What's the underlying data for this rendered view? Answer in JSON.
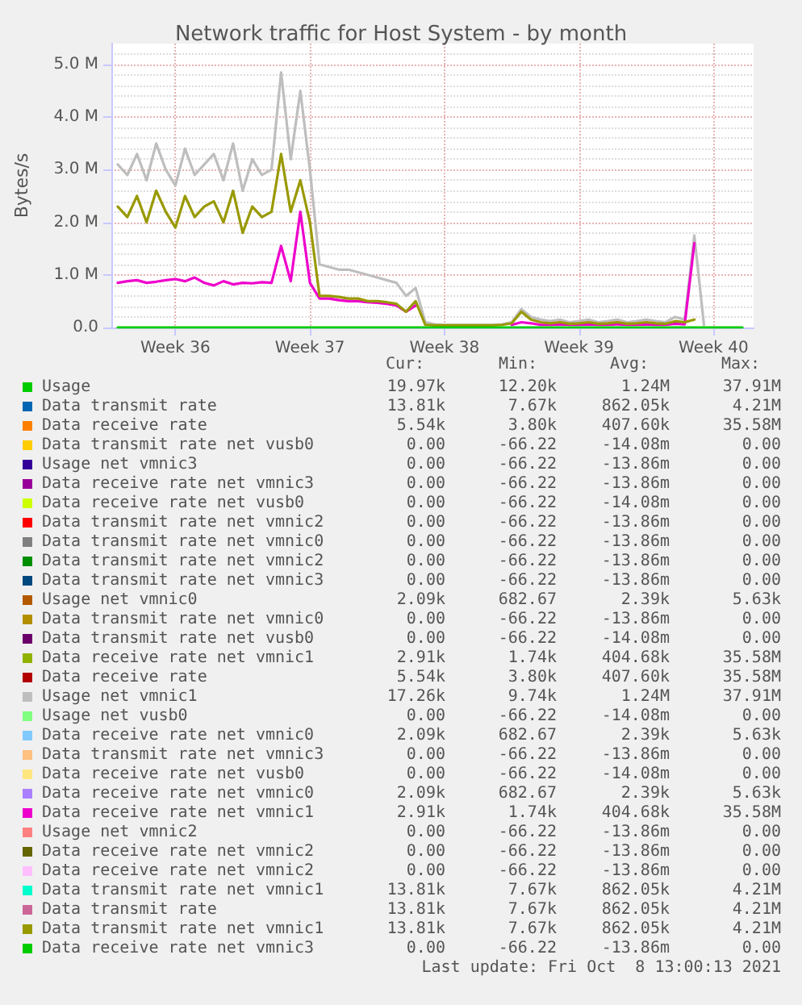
{
  "chart_data": {
    "type": "line",
    "title": "Network traffic for Host System - by month",
    "ylabel": "Bytes/s",
    "x": [
      "2021-09-06T12:00",
      "2021-09-07T00:00",
      "2021-09-07T12:00",
      "2021-09-08T00:00",
      "2021-09-08T12:00",
      "2021-09-09T00:00",
      "2021-09-09T12:00",
      "2021-09-10T00:00",
      "2021-09-10T12:00",
      "2021-09-11T00:00",
      "2021-09-11T12:00",
      "2021-09-12T00:00",
      "2021-09-12T12:00",
      "2021-09-13T00:00",
      "2021-09-13T12:00",
      "2021-09-14T00:00",
      "2021-09-14T12:00",
      "2021-09-15T00:00",
      "2021-09-15T12:00",
      "2021-09-16T00:00",
      "2021-09-16T12:00",
      "2021-09-17T00:00",
      "2021-09-17T12:00",
      "2021-09-18T00:00",
      "2021-09-18T12:00",
      "2021-09-19T00:00",
      "2021-09-19T12:00",
      "2021-09-20T00:00",
      "2021-09-20T12:00",
      "2021-09-21T00:00",
      "2021-09-21T12:00",
      "2021-09-22T00:00",
      "2021-09-22T12:00",
      "2021-09-23T00:00",
      "2021-09-23T12:00",
      "2021-09-24T00:00",
      "2021-09-24T12:00",
      "2021-09-25T00:00",
      "2021-09-25T12:00",
      "2021-09-26T00:00",
      "2021-09-26T12:00",
      "2021-09-27T00:00",
      "2021-09-27T12:00",
      "2021-09-28T00:00",
      "2021-09-28T12:00",
      "2021-09-29T00:00",
      "2021-09-29T12:00",
      "2021-09-30T00:00",
      "2021-09-30T12:00",
      "2021-10-01T00:00",
      "2021-10-01T12:00",
      "2021-10-02T00:00",
      "2021-10-02T12:00",
      "2021-10-03T00:00",
      "2021-10-03T12:00",
      "2021-10-04T00:00",
      "2021-10-04T12:00",
      "2021-10-05T00:00",
      "2021-10-05T12:00",
      "2021-10-06T00:00",
      "2021-10-06T12:00",
      "2021-10-07T00:00",
      "2021-10-07T12:00",
      "2021-10-08T00:00",
      "2021-10-08T12:00",
      "2021-10-09T00:00"
    ],
    "xlim": [
      "2021-09-06T04:00",
      "2021-10-09T14:00"
    ],
    "xticks": [
      {
        "value": "2021-09-09T12:00",
        "label": "Week 36"
      },
      {
        "value": "2021-09-16T12:00",
        "label": "Week 37"
      },
      {
        "value": "2021-09-23T12:00",
        "label": "Week 38"
      },
      {
        "value": "2021-09-30T12:00",
        "label": "Week 39"
      },
      {
        "value": "2021-10-07T12:00",
        "label": "Week 40"
      }
    ],
    "ylim": [
      0,
      5.4
    ],
    "yticks": [
      {
        "value": 0,
        "label": "0.0"
      },
      {
        "value": 1,
        "label": "1.0 M"
      },
      {
        "value": 2,
        "label": "2.0 M"
      },
      {
        "value": 3,
        "label": "3.0 M"
      },
      {
        "value": 4,
        "label": "4.0 M"
      },
      {
        "value": 5,
        "label": "5.0 M"
      }
    ],
    "grid": true,
    "legend": "bottom",
    "marker": "none",
    "line_style": "solid",
    "series": [
      {
        "name": "Usage",
        "color": "#00cc00",
        "values": [
          null,
          null,
          null,
          null,
          null,
          null,
          null,
          null,
          null,
          null,
          null,
          null,
          null,
          null,
          null,
          null,
          null,
          null,
          null,
          null,
          null,
          null,
          null,
          null,
          null,
          null,
          null,
          null,
          null,
          null,
          null,
          null,
          null,
          null,
          null,
          null,
          null,
          null,
          null,
          null,
          null,
          null,
          null,
          null,
          null,
          null,
          null,
          null,
          null,
          null,
          null,
          null,
          null,
          null,
          null,
          null,
          null,
          null,
          null,
          null,
          null,
          null,
          null,
          null,
          null,
          null
        ]
      },
      {
        "name": "Data transmit rate",
        "color": "#0066b3",
        "values": [
          null,
          null,
          null,
          null,
          null,
          null,
          null,
          null,
          null,
          null,
          null,
          null,
          null,
          null,
          null,
          null,
          null,
          null,
          null,
          null,
          null,
          null,
          null,
          null,
          null,
          null,
          null,
          null,
          null,
          null,
          null,
          null,
          null,
          null,
          null,
          null,
          null,
          null,
          null,
          null,
          null,
          null,
          null,
          null,
          null,
          null,
          null,
          null,
          null,
          null,
          null,
          null,
          null,
          null,
          null,
          null,
          null,
          null,
          null,
          null,
          null,
          null,
          null,
          null,
          null,
          null
        ]
      },
      {
        "name": "Data receive rate",
        "color": "#ff8000",
        "values": [
          null,
          null,
          null,
          null,
          null,
          null,
          null,
          null,
          null,
          null,
          null,
          null,
          null,
          null,
          null,
          null,
          null,
          null,
          null,
          null,
          null,
          null,
          null,
          null,
          null,
          null,
          null,
          null,
          null,
          null,
          null,
          null,
          null,
          null,
          null,
          null,
          null,
          null,
          null,
          null,
          null,
          null,
          null,
          null,
          null,
          null,
          null,
          null,
          null,
          null,
          null,
          null,
          null,
          null,
          null,
          null,
          null,
          null,
          null,
          null,
          null,
          null,
          null,
          null,
          null,
          null
        ]
      },
      {
        "name": "Data transmit rate net vusb0",
        "color": "#ffcc00",
        "values": [
          null,
          null,
          null,
          null,
          null,
          null,
          null,
          null,
          null,
          null,
          null,
          null,
          null,
          null,
          null,
          null,
          null,
          null,
          null,
          null,
          null,
          null,
          null,
          null,
          null,
          null,
          null,
          null,
          null,
          null,
          null,
          null,
          null,
          null,
          null,
          null,
          null,
          null,
          null,
          null,
          null,
          null,
          null,
          null,
          null,
          null,
          null,
          null,
          null,
          null,
          null,
          null,
          null,
          null,
          null,
          null,
          null,
          null,
          null,
          null,
          null,
          null,
          null,
          null,
          null,
          null
        ]
      },
      {
        "name": "Usage net vmnic3",
        "color": "#330099",
        "values": [
          null,
          null,
          null,
          null,
          null,
          null,
          null,
          null,
          null,
          null,
          null,
          null,
          null,
          null,
          null,
          null,
          null,
          null,
          null,
          null,
          null,
          null,
          null,
          null,
          null,
          null,
          null,
          null,
          null,
          null,
          null,
          null,
          null,
          null,
          null,
          null,
          null,
          null,
          null,
          null,
          null,
          null,
          null,
          null,
          null,
          null,
          null,
          null,
          null,
          null,
          null,
          null,
          null,
          null,
          null,
          null,
          null,
          null,
          null,
          null,
          null,
          null,
          null,
          null,
          null,
          null
        ]
      },
      {
        "name": "Data receive rate net vmnic3",
        "color": "#990099",
        "values": [
          null,
          null,
          null,
          null,
          null,
          null,
          null,
          null,
          null,
          null,
          null,
          null,
          null,
          null,
          null,
          null,
          null,
          null,
          null,
          null,
          null,
          null,
          null,
          null,
          null,
          null,
          null,
          null,
          null,
          null,
          null,
          null,
          null,
          null,
          null,
          null,
          null,
          null,
          null,
          null,
          null,
          null,
          null,
          null,
          null,
          null,
          null,
          null,
          null,
          null,
          null,
          null,
          null,
          null,
          null,
          null,
          null,
          null,
          null,
          null,
          null,
          null,
          null,
          null,
          null,
          null
        ]
      },
      {
        "name": "Data receive rate net vusb0",
        "color": "#ccff00",
        "values": [
          null,
          null,
          null,
          null,
          null,
          null,
          null,
          null,
          null,
          null,
          null,
          null,
          null,
          null,
          null,
          null,
          null,
          null,
          null,
          null,
          null,
          null,
          null,
          null,
          null,
          null,
          null,
          null,
          null,
          null,
          null,
          null,
          null,
          null,
          null,
          null,
          null,
          null,
          null,
          null,
          null,
          null,
          null,
          null,
          null,
          null,
          null,
          null,
          null,
          null,
          null,
          null,
          null,
          null,
          null,
          null,
          null,
          null,
          null,
          null,
          null,
          null,
          null,
          null,
          null,
          null
        ]
      },
      {
        "name": "Data transmit rate net vmnic2",
        "color": "#ff0000",
        "values": [
          null,
          null,
          null,
          null,
          null,
          null,
          null,
          null,
          null,
          null,
          null,
          null,
          null,
          null,
          null,
          null,
          null,
          null,
          null,
          null,
          null,
          null,
          null,
          null,
          null,
          null,
          null,
          null,
          null,
          null,
          null,
          null,
          null,
          null,
          null,
          null,
          null,
          null,
          null,
          null,
          null,
          null,
          null,
          null,
          null,
          null,
          null,
          null,
          null,
          null,
          null,
          null,
          null,
          null,
          null,
          null,
          null,
          null,
          null,
          null,
          null,
          null,
          null,
          null,
          null,
          null
        ]
      },
      {
        "name": "Data transmit rate net vmnic0",
        "color": "#808080",
        "values": [
          null,
          null,
          null,
          null,
          null,
          null,
          null,
          null,
          null,
          null,
          null,
          null,
          null,
          null,
          null,
          null,
          null,
          null,
          null,
          null,
          null,
          null,
          null,
          null,
          null,
          null,
          null,
          null,
          null,
          null,
          null,
          null,
          null,
          null,
          null,
          null,
          null,
          null,
          null,
          null,
          null,
          null,
          null,
          null,
          null,
          null,
          null,
          null,
          null,
          null,
          null,
          null,
          null,
          null,
          null,
          null,
          null,
          null,
          null,
          null,
          null,
          null,
          null,
          null,
          null,
          null
        ]
      },
      {
        "name": "Data transmit rate net vmnic2",
        "color": "#008f00",
        "values": [
          null,
          null,
          null,
          null,
          null,
          null,
          null,
          null,
          null,
          null,
          null,
          null,
          null,
          null,
          null,
          null,
          null,
          null,
          null,
          null,
          null,
          null,
          null,
          null,
          null,
          null,
          null,
          null,
          null,
          null,
          null,
          null,
          null,
          null,
          null,
          null,
          null,
          null,
          null,
          null,
          null,
          null,
          null,
          null,
          null,
          null,
          null,
          null,
          null,
          null,
          null,
          null,
          null,
          null,
          null,
          null,
          null,
          null,
          null,
          null,
          null,
          null,
          null,
          null,
          null,
          null
        ]
      },
      {
        "name": "Data transmit rate net vmnic3",
        "color": "#00487d",
        "values": [
          null,
          null,
          null,
          null,
          null,
          null,
          null,
          null,
          null,
          null,
          null,
          null,
          null,
          null,
          null,
          null,
          null,
          null,
          null,
          null,
          null,
          null,
          null,
          null,
          null,
          null,
          null,
          null,
          null,
          null,
          null,
          null,
          null,
          null,
          null,
          null,
          null,
          null,
          null,
          null,
          null,
          null,
          null,
          null,
          null,
          null,
          null,
          null,
          null,
          null,
          null,
          null,
          null,
          null,
          null,
          null,
          null,
          null,
          null,
          null,
          null,
          null,
          null,
          null,
          null,
          null
        ]
      },
      {
        "name": "Usage net vmnic0",
        "color": "#b35a00",
        "values": [
          null,
          null,
          null,
          null,
          null,
          null,
          null,
          null,
          null,
          null,
          null,
          null,
          null,
          null,
          null,
          null,
          null,
          null,
          null,
          null,
          null,
          null,
          null,
          null,
          null,
          null,
          null,
          null,
          null,
          null,
          null,
          null,
          null,
          null,
          null,
          null,
          null,
          null,
          null,
          null,
          null,
          null,
          null,
          null,
          null,
          null,
          null,
          null,
          null,
          null,
          null,
          null,
          null,
          null,
          null,
          null,
          null,
          null,
          null,
          null,
          null,
          null,
          null,
          null,
          null,
          null
        ]
      },
      {
        "name": "Data transmit rate net vmnic0",
        "color": "#b38f00",
        "values": [
          null,
          null,
          null,
          null,
          null,
          null,
          null,
          null,
          null,
          null,
          null,
          null,
          null,
          null,
          null,
          null,
          null,
          null,
          null,
          null,
          null,
          null,
          null,
          null,
          null,
          null,
          null,
          null,
          null,
          null,
          null,
          null,
          null,
          null,
          null,
          null,
          null,
          null,
          null,
          null,
          null,
          null,
          null,
          null,
          null,
          null,
          null,
          null,
          null,
          null,
          null,
          null,
          null,
          null,
          null,
          null,
          null,
          null,
          null,
          null,
          null,
          null,
          null,
          null,
          null,
          null
        ]
      },
      {
        "name": "Data transmit rate net vusb0",
        "color": "#6b006b",
        "values": [
          null,
          null,
          null,
          null,
          null,
          null,
          null,
          null,
          null,
          null,
          null,
          null,
          null,
          null,
          null,
          null,
          null,
          null,
          null,
          null,
          null,
          null,
          null,
          null,
          null,
          null,
          null,
          null,
          null,
          null,
          null,
          null,
          null,
          null,
          null,
          null,
          null,
          null,
          null,
          null,
          null,
          null,
          null,
          null,
          null,
          null,
          null,
          null,
          null,
          null,
          null,
          null,
          null,
          null,
          null,
          null,
          null,
          null,
          null,
          null,
          null,
          null,
          null,
          null,
          null,
          null
        ]
      },
      {
        "name": "Data receive rate net vmnic1",
        "color": "#8fb300",
        "values": [
          null,
          null,
          null,
          null,
          null,
          null,
          null,
          null,
          null,
          null,
          null,
          null,
          null,
          null,
          null,
          null,
          null,
          null,
          null,
          null,
          null,
          null,
          null,
          null,
          null,
          null,
          null,
          null,
          null,
          null,
          null,
          null,
          null,
          null,
          null,
          null,
          null,
          null,
          null,
          null,
          null,
          null,
          null,
          null,
          null,
          null,
          null,
          null,
          null,
          null,
          null,
          null,
          null,
          null,
          null,
          null,
          null,
          null,
          null,
          null,
          null,
          null,
          null,
          null,
          null,
          null
        ]
      },
      {
        "name": "Data receive rate",
        "color": "#b30000",
        "values": [
          null,
          null,
          null,
          null,
          null,
          null,
          null,
          null,
          null,
          null,
          null,
          null,
          null,
          null,
          null,
          null,
          null,
          null,
          null,
          null,
          null,
          null,
          null,
          null,
          null,
          null,
          null,
          null,
          null,
          null,
          null,
          null,
          null,
          null,
          null,
          null,
          null,
          null,
          null,
          null,
          null,
          null,
          null,
          null,
          null,
          null,
          null,
          null,
          null,
          null,
          null,
          null,
          null,
          null,
          null,
          null,
          null,
          null,
          null,
          null,
          null,
          null,
          null,
          null,
          null,
          null
        ]
      },
      {
        "name": "Usage net vmnic1",
        "color": "#bebebe",
        "values": [
          3.1,
          2.9,
          3.3,
          2.8,
          3.5,
          3.0,
          2.7,
          3.4,
          2.9,
          3.1,
          3.3,
          2.8,
          3.5,
          2.6,
          3.2,
          2.9,
          3.0,
          4.85,
          3.2,
          4.5,
          3.0,
          1.2,
          1.15,
          1.1,
          1.1,
          1.05,
          1.0,
          0.95,
          0.9,
          0.85,
          0.6,
          0.75,
          0.1,
          0.06,
          0.05,
          0.05,
          0.05,
          0.05,
          0.05,
          0.05,
          0.06,
          0.1,
          0.35,
          0.2,
          0.15,
          0.12,
          0.15,
          0.1,
          0.12,
          0.15,
          0.1,
          0.12,
          0.15,
          0.1,
          0.12,
          0.15,
          0.12,
          0.1,
          0.2,
          0.15,
          1.75,
          0.05,
          null,
          null,
          null,
          null
        ]
      },
      {
        "name": "Usage net vusb0",
        "color": "#80ff80",
        "values": [
          null,
          null,
          null,
          null,
          null,
          null,
          null,
          null,
          null,
          null,
          null,
          null,
          null,
          null,
          null,
          null,
          null,
          null,
          null,
          null,
          null,
          null,
          null,
          null,
          null,
          null,
          null,
          null,
          null,
          null,
          null,
          null,
          null,
          null,
          null,
          null,
          null,
          null,
          null,
          null,
          null,
          null,
          null,
          null,
          null,
          null,
          null,
          null,
          null,
          null,
          null,
          null,
          null,
          null,
          null,
          null,
          null,
          null,
          null,
          null,
          null,
          null,
          null,
          null,
          null,
          null
        ]
      },
      {
        "name": "Data receive rate net vmnic0",
        "color": "#80c9ff",
        "values": [
          null,
          null,
          null,
          null,
          null,
          null,
          null,
          null,
          null,
          null,
          null,
          null,
          null,
          null,
          null,
          null,
          null,
          null,
          null,
          null,
          null,
          null,
          null,
          null,
          null,
          null,
          null,
          null,
          null,
          null,
          null,
          null,
          null,
          null,
          null,
          null,
          null,
          null,
          null,
          null,
          null,
          null,
          null,
          null,
          null,
          null,
          null,
          null,
          null,
          null,
          null,
          null,
          null,
          null,
          null,
          null,
          null,
          null,
          null,
          null,
          null,
          null,
          null,
          null,
          null,
          null
        ]
      },
      {
        "name": "Data transmit rate net vmnic3",
        "color": "#ffc080",
        "values": [
          null,
          null,
          null,
          null,
          null,
          null,
          null,
          null,
          null,
          null,
          null,
          null,
          null,
          null,
          null,
          null,
          null,
          null,
          null,
          null,
          null,
          null,
          null,
          null,
          null,
          null,
          null,
          null,
          null,
          null,
          null,
          null,
          null,
          null,
          null,
          null,
          null,
          null,
          null,
          null,
          null,
          null,
          null,
          null,
          null,
          null,
          null,
          null,
          null,
          null,
          null,
          null,
          null,
          null,
          null,
          null,
          null,
          null,
          null,
          null,
          null,
          null,
          null,
          null,
          null,
          null
        ]
      },
      {
        "name": "Data receive rate net vusb0",
        "color": "#ffe680",
        "values": [
          null,
          null,
          null,
          null,
          null,
          null,
          null,
          null,
          null,
          null,
          null,
          null,
          null,
          null,
          null,
          null,
          null,
          null,
          null,
          null,
          null,
          null,
          null,
          null,
          null,
          null,
          null,
          null,
          null,
          null,
          null,
          null,
          null,
          null,
          null,
          null,
          null,
          null,
          null,
          null,
          null,
          null,
          null,
          null,
          null,
          null,
          null,
          null,
          null,
          null,
          null,
          null,
          null,
          null,
          null,
          null,
          null,
          null,
          null,
          null,
          null,
          null,
          null,
          null,
          null,
          null
        ]
      },
      {
        "name": "Data receive rate net vmnic0",
        "color": "#aa80ff",
        "values": [
          null,
          null,
          null,
          null,
          null,
          null,
          null,
          null,
          null,
          null,
          null,
          null,
          null,
          null,
          null,
          null,
          null,
          null,
          null,
          null,
          null,
          null,
          null,
          null,
          null,
          null,
          null,
          null,
          null,
          null,
          null,
          null,
          null,
          null,
          null,
          null,
          null,
          null,
          null,
          null,
          null,
          null,
          null,
          null,
          null,
          null,
          null,
          null,
          null,
          null,
          null,
          null,
          null,
          null,
          null,
          null,
          null,
          null,
          null,
          null,
          null,
          null,
          null,
          null,
          null,
          null
        ]
      },
      {
        "name": "Data receive rate net vmnic1",
        "color": "#ee00cc",
        "values": [
          0.85,
          0.88,
          0.9,
          0.85,
          0.87,
          0.9,
          0.92,
          0.88,
          0.95,
          0.85,
          0.8,
          0.88,
          0.82,
          0.85,
          0.84,
          0.86,
          0.85,
          1.55,
          0.88,
          2.2,
          0.85,
          0.55,
          0.55,
          0.52,
          0.5,
          0.5,
          0.48,
          0.47,
          0.45,
          0.42,
          0.3,
          0.42,
          null,
          null,
          null,
          null,
          null,
          null,
          null,
          null,
          null,
          0.05,
          0.1,
          0.08,
          0.05,
          0.05,
          0.06,
          0.05,
          0.05,
          0.06,
          0.05,
          0.05,
          0.06,
          0.05,
          0.05,
          0.06,
          0.05,
          0.05,
          0.07,
          0.06,
          1.6,
          null,
          null,
          null,
          null,
          null
        ]
      },
      {
        "name": "Usage net vmnic2",
        "color": "#ff8080",
        "values": [
          null,
          null,
          null,
          null,
          null,
          null,
          null,
          null,
          null,
          null,
          null,
          null,
          null,
          null,
          null,
          null,
          null,
          null,
          null,
          null,
          null,
          null,
          null,
          null,
          null,
          null,
          null,
          null,
          null,
          null,
          null,
          null,
          null,
          null,
          null,
          null,
          null,
          null,
          null,
          null,
          null,
          null,
          null,
          null,
          null,
          null,
          null,
          null,
          null,
          null,
          null,
          null,
          null,
          null,
          null,
          null,
          null,
          null,
          null,
          null,
          null,
          null,
          null,
          null,
          null,
          null
        ]
      },
      {
        "name": "Data receive rate net vmnic2",
        "color": "#666600",
        "values": [
          null,
          null,
          null,
          null,
          null,
          null,
          null,
          null,
          null,
          null,
          null,
          null,
          null,
          null,
          null,
          null,
          null,
          null,
          null,
          null,
          null,
          null,
          null,
          null,
          null,
          null,
          null,
          null,
          null,
          null,
          null,
          null,
          null,
          null,
          null,
          null,
          null,
          null,
          null,
          null,
          null,
          null,
          null,
          null,
          null,
          null,
          null,
          null,
          null,
          null,
          null,
          null,
          null,
          null,
          null,
          null,
          null,
          null,
          null,
          null,
          null,
          null,
          null,
          null,
          null,
          null
        ]
      },
      {
        "name": "Data receive rate net vmnic2",
        "color": "#ffbfff",
        "values": [
          null,
          null,
          null,
          null,
          null,
          null,
          null,
          null,
          null,
          null,
          null,
          null,
          null,
          null,
          null,
          null,
          null,
          null,
          null,
          null,
          null,
          null,
          null,
          null,
          null,
          null,
          null,
          null,
          null,
          null,
          null,
          null,
          null,
          null,
          null,
          null,
          null,
          null,
          null,
          null,
          null,
          null,
          null,
          null,
          null,
          null,
          null,
          null,
          null,
          null,
          null,
          null,
          null,
          null,
          null,
          null,
          null,
          null,
          null,
          null,
          null,
          null,
          null,
          null,
          null,
          null
        ]
      },
      {
        "name": "Data transmit rate net vmnic1",
        "color": "#00ffcc",
        "values": [
          null,
          null,
          null,
          null,
          null,
          null,
          null,
          null,
          null,
          null,
          null,
          null,
          null,
          null,
          null,
          null,
          null,
          null,
          null,
          null,
          null,
          null,
          null,
          null,
          null,
          null,
          null,
          null,
          null,
          null,
          null,
          null,
          null,
          null,
          null,
          null,
          null,
          null,
          null,
          null,
          null,
          null,
          null,
          null,
          null,
          null,
          null,
          null,
          null,
          null,
          null,
          null,
          null,
          null,
          null,
          null,
          null,
          null,
          null,
          null,
          null,
          null,
          null,
          null,
          null,
          null
        ]
      },
      {
        "name": "Data transmit rate",
        "color": "#cc6699",
        "values": [
          null,
          null,
          null,
          null,
          null,
          null,
          null,
          null,
          null,
          null,
          null,
          null,
          null,
          null,
          null,
          null,
          null,
          null,
          null,
          null,
          null,
          null,
          null,
          null,
          null,
          null,
          null,
          null,
          null,
          null,
          null,
          null,
          null,
          null,
          null,
          null,
          null,
          null,
          null,
          null,
          null,
          null,
          null,
          null,
          null,
          null,
          null,
          null,
          null,
          null,
          null,
          null,
          null,
          null,
          null,
          null,
          null,
          null,
          null,
          null,
          null,
          null,
          null,
          null,
          null,
          null
        ]
      },
      {
        "name": "Data transmit rate net vmnic1",
        "color": "#999900",
        "values": [
          2.3,
          2.1,
          2.5,
          2.0,
          2.6,
          2.2,
          1.9,
          2.5,
          2.1,
          2.3,
          2.4,
          2.0,
          2.6,
          1.8,
          2.3,
          2.1,
          2.2,
          3.3,
          2.2,
          2.8,
          2.0,
          0.6,
          0.6,
          0.58,
          0.55,
          0.55,
          0.5,
          0.5,
          0.48,
          0.45,
          0.3,
          0.5,
          0.05,
          0.04,
          0.04,
          0.04,
          0.04,
          0.04,
          0.04,
          0.04,
          0.05,
          0.08,
          0.3,
          0.15,
          0.1,
          0.08,
          0.1,
          0.07,
          0.08,
          0.1,
          0.07,
          0.08,
          0.1,
          0.07,
          0.08,
          0.1,
          0.08,
          0.07,
          0.12,
          0.1,
          0.15,
          null,
          null,
          null,
          null,
          null
        ]
      },
      {
        "name": "Data receive rate net vmnic3",
        "color": "#00cc00",
        "values": [
          0,
          0,
          0,
          0,
          0,
          0,
          0,
          0,
          0,
          0,
          0,
          0,
          0,
          0,
          0,
          0,
          0,
          0,
          0,
          0,
          0,
          0,
          0,
          0,
          0,
          0,
          0,
          0,
          0,
          0,
          0,
          0,
          0,
          0,
          0,
          0,
          0,
          0,
          0,
          0,
          0,
          0,
          0,
          0,
          0,
          0,
          0,
          0,
          0,
          0,
          0,
          0,
          0,
          0,
          0,
          0,
          0,
          0,
          0,
          0,
          0,
          0,
          0,
          0,
          0,
          0
        ]
      }
    ],
    "annotations": [
      "Cur:",
      "Min:",
      "Avg:",
      "Max:",
      "19.97k",
      "12.20k",
      "1.24M",
      "37.91M",
      "13.81k",
      "7.67k",
      "862.05k",
      "4.21M",
      "5.54k",
      "3.80k",
      "407.60k",
      "35.58M",
      "0.00",
      "-66.22",
      "-14.08m",
      "0.00",
      "0.00",
      "-66.22",
      "-13.86m",
      "0.00",
      "0.00",
      "-66.22",
      "-13.86m",
      "0.00",
      "0.00",
      "-66.22",
      "-14.08m",
      "0.00",
      "0.00",
      "-66.22",
      "-13.86m",
      "0.00",
      "0.00",
      "-66.22",
      "-13.86m",
      "0.00",
      "0.00",
      "-66.22",
      "-13.86m",
      "0.00",
      "0.00",
      "-66.22",
      "-13.86m",
      "0.00",
      "2.09k",
      "682.67",
      "2.39k",
      "5.63k",
      "0.00",
      "-66.22",
      "-13.86m",
      "0.00",
      "0.00",
      "-66.22",
      "-14.08m",
      "0.00",
      "2.91k",
      "1.74k",
      "404.68k",
      "35.58M",
      "5.54k",
      "3.80k",
      "407.60k",
      "35.58M",
      "17.26k",
      "9.74k",
      "1.24M",
      "37.91M",
      "0.00",
      "-66.22",
      "-14.08m",
      "0.00",
      "2.09k",
      "682.67",
      "2.39k",
      "5.63k",
      "0.00",
      "-66.22",
      "-13.86m",
      "0.00",
      "0.00",
      "-66.22",
      "-14.08m",
      "0.00",
      "2.09k",
      "682.67",
      "2.39k",
      "5.63k",
      "2.91k",
      "1.74k",
      "404.68k",
      "35.58M",
      "0.00",
      "-66.22",
      "-13.86m",
      "0.00",
      "0.00",
      "-66.22",
      "-13.86m",
      "0.00",
      "0.00",
      "-66.22",
      "-13.86m",
      "0.00",
      "13.81k",
      "7.67k",
      "862.05k",
      "4.21M",
      "13.81k",
      "7.67k",
      "862.05k",
      "4.21M",
      "13.81k",
      "7.67k",
      "862.05k",
      "4.21M",
      "0.00",
      "-66.22",
      "-13.86m",
      "0.00",
      "Last update: Fri Oct  8 13:00:13 2021"
    ]
  }
}
